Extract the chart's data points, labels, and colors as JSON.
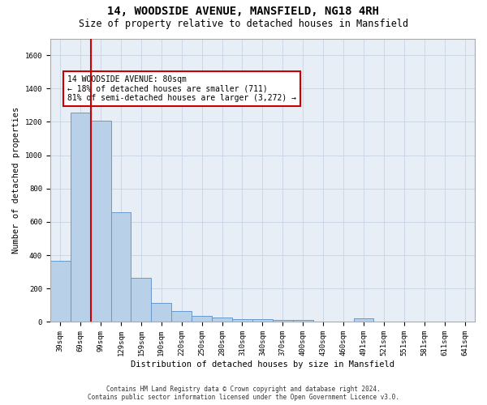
{
  "title": "14, WOODSIDE AVENUE, MANSFIELD, NG18 4RH",
  "subtitle": "Size of property relative to detached houses in Mansfield",
  "xlabel": "Distribution of detached houses by size in Mansfield",
  "ylabel": "Number of detached properties",
  "bar_color": "#b8d0e8",
  "bar_edge_color": "#6699cc",
  "categories": [
    "39sqm",
    "69sqm",
    "99sqm",
    "129sqm",
    "159sqm",
    "190sqm",
    "220sqm",
    "250sqm",
    "280sqm",
    "310sqm",
    "340sqm",
    "370sqm",
    "400sqm",
    "430sqm",
    "460sqm",
    "491sqm",
    "521sqm",
    "551sqm",
    "581sqm",
    "611sqm",
    "641sqm"
  ],
  "values": [
    365,
    1255,
    1205,
    660,
    265,
    115,
    67,
    38,
    25,
    18,
    15,
    13,
    13,
    0,
    0,
    20,
    0,
    0,
    0,
    0,
    0
  ],
  "ylim": [
    0,
    1700
  ],
  "yticks": [
    0,
    200,
    400,
    600,
    800,
    1000,
    1200,
    1400,
    1600
  ],
  "property_line_x": 1.5,
  "annotation_text": "14 WOODSIDE AVENUE: 80sqm\n← 18% of detached houses are smaller (711)\n81% of semi-detached houses are larger (3,272) →",
  "annotation_box_color": "#ffffff",
  "annotation_border_color": "#cc0000",
  "grid_color": "#c8d4e4",
  "background_color": "#e8eef6",
  "footer_text": "Contains HM Land Registry data © Crown copyright and database right 2024.\nContains public sector information licensed under the Open Government Licence v3.0.",
  "vline_color": "#cc0000",
  "title_fontsize": 10,
  "subtitle_fontsize": 8.5,
  "tick_fontsize": 6.5,
  "ylabel_fontsize": 7.5,
  "xlabel_fontsize": 7.5,
  "annotation_fontsize": 7,
  "footer_fontsize": 5.5
}
